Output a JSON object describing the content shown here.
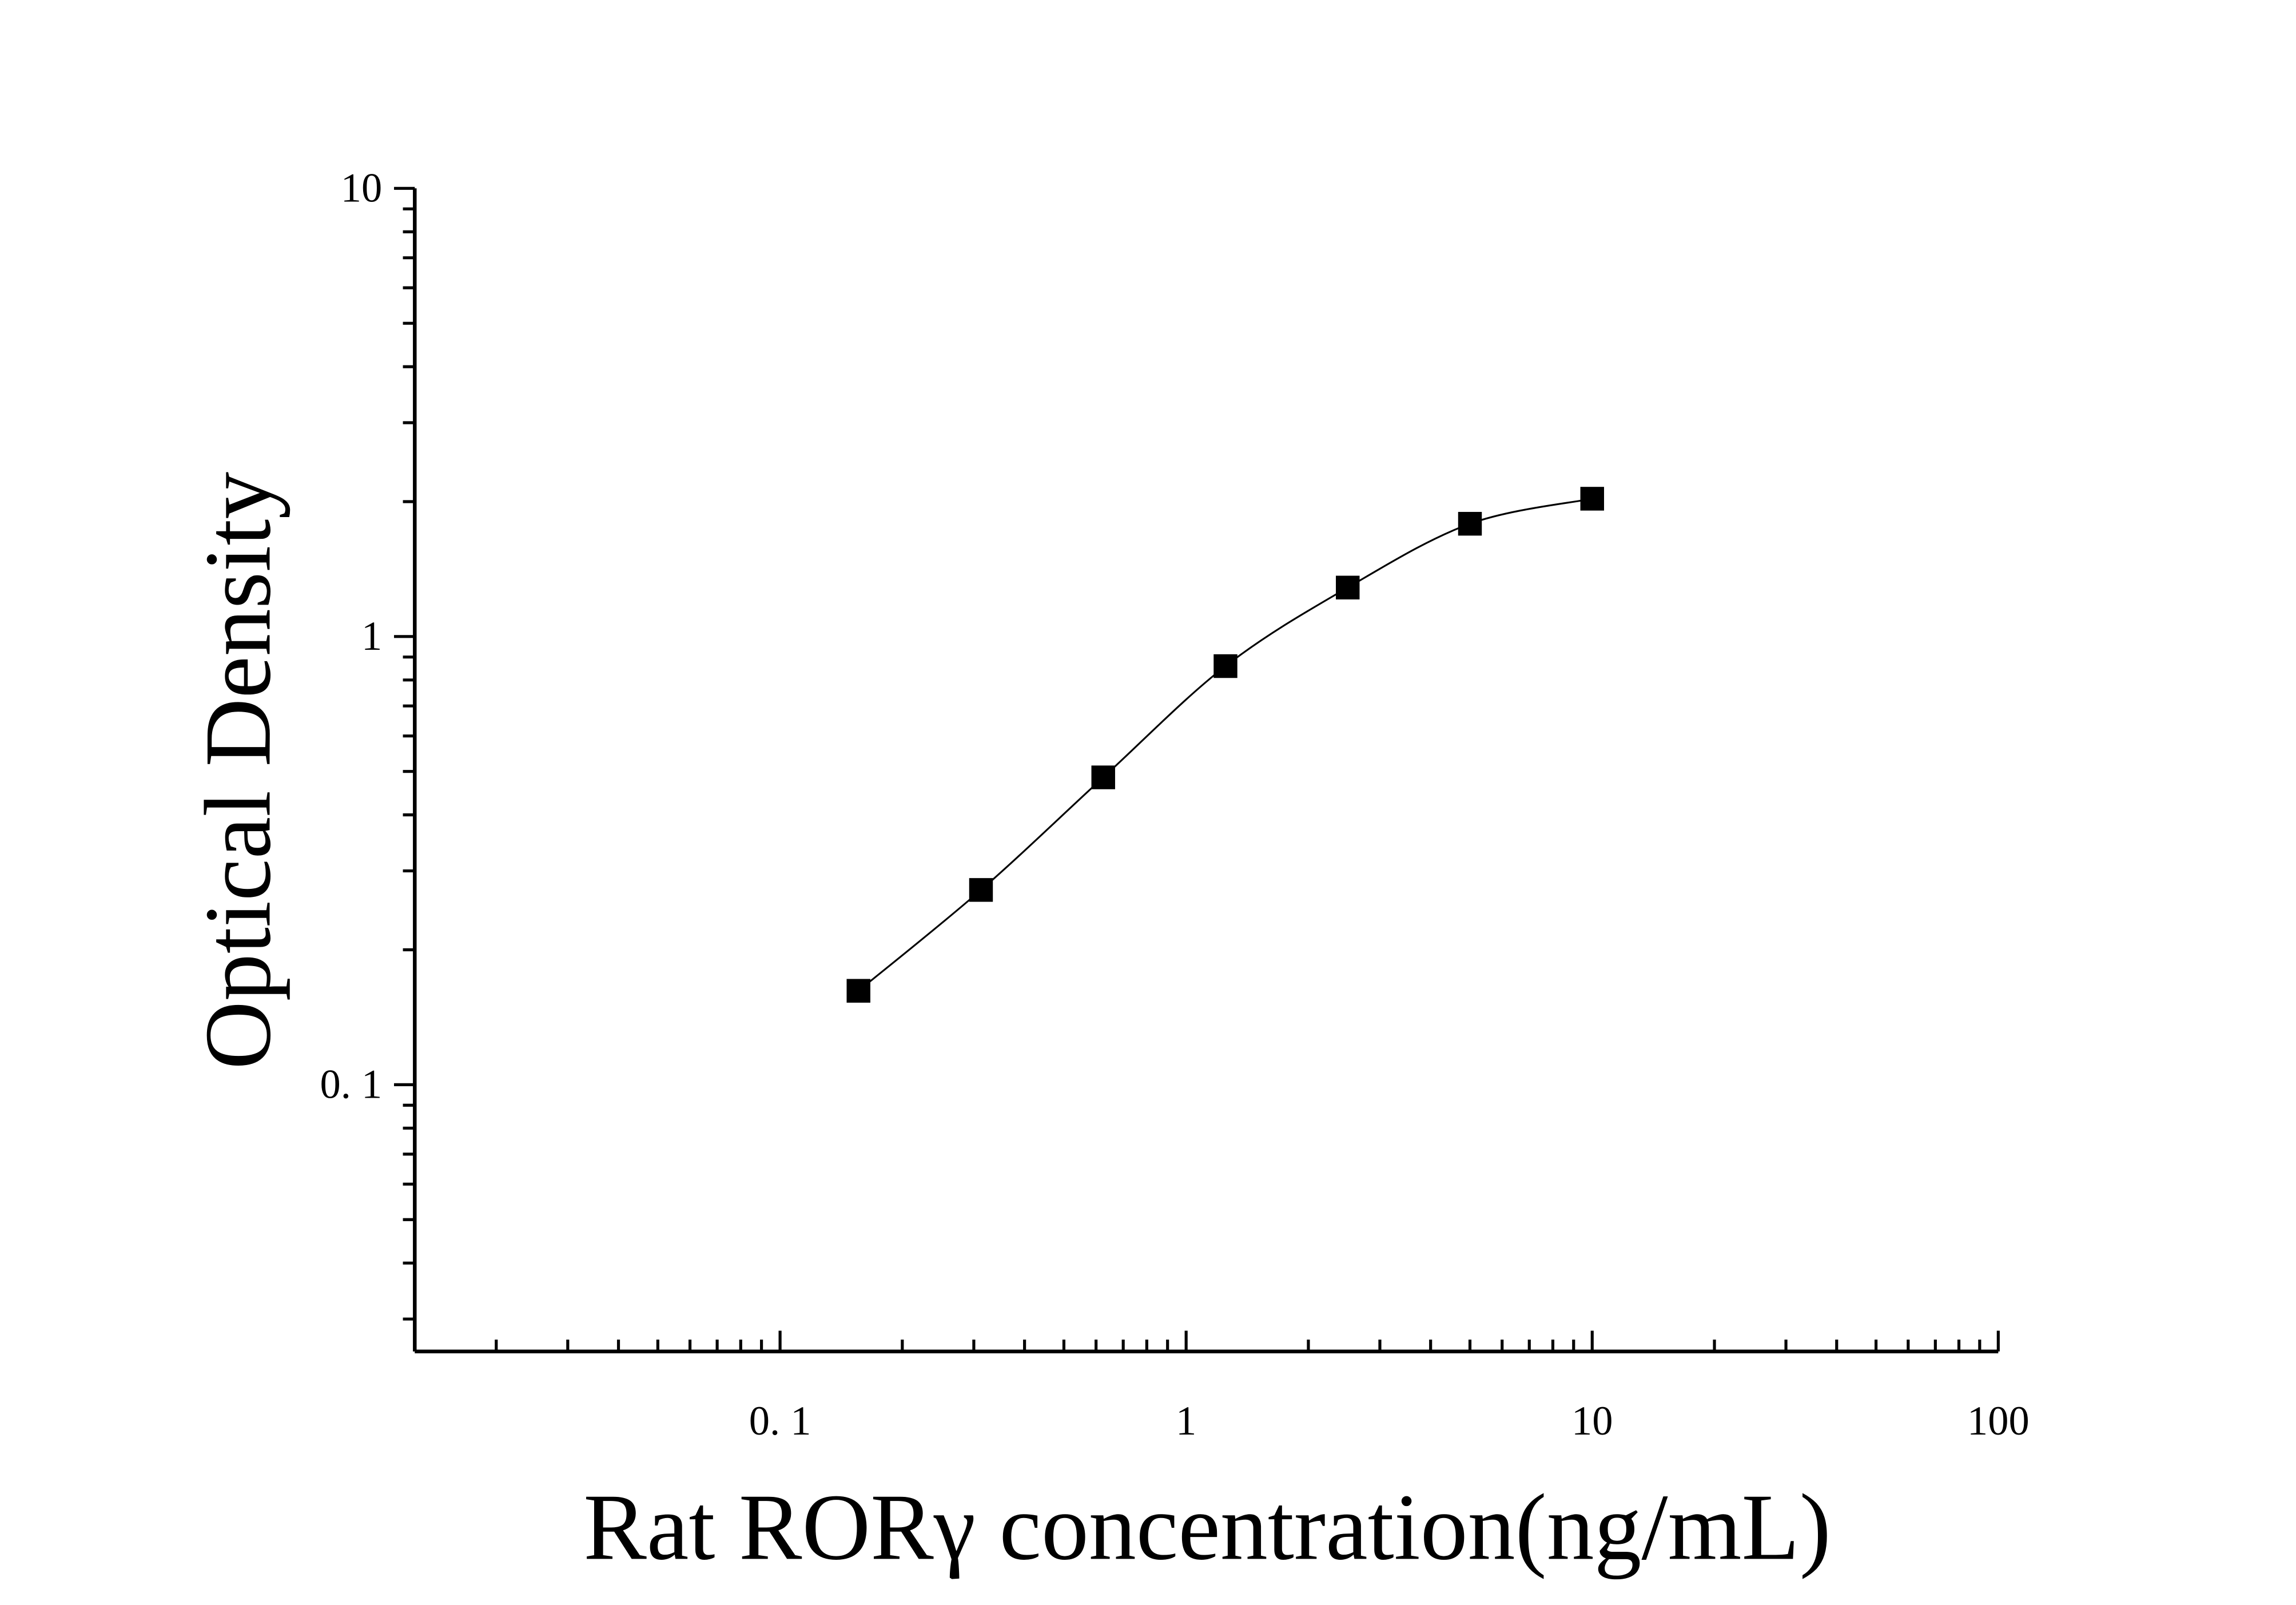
{
  "chart_data": {
    "type": "scatter",
    "title": "",
    "xlabel": "Rat RORγ concentration(ng/mL)",
    "ylabel": "Optical Density",
    "x_scale": "log",
    "y_scale": "log",
    "xlim": [
      0.0126,
      100
    ],
    "ylim": [
      0.0254,
      10
    ],
    "x_ticks": [
      {
        "value": 0.1,
        "label": "0. 1"
      },
      {
        "value": 1,
        "label": "1"
      },
      {
        "value": 10,
        "label": "10"
      },
      {
        "value": 100,
        "label": "100"
      }
    ],
    "y_ticks": [
      {
        "value": 0.1,
        "label": "0. 1"
      },
      {
        "value": 1,
        "label": "1"
      },
      {
        "value": 10,
        "label": "10"
      }
    ],
    "grid": false,
    "marker": "square",
    "fit_line": "smooth curve",
    "color": "#000000",
    "points": [
      {
        "x": 0.156,
        "y": 0.162
      },
      {
        "x": 0.3125,
        "y": 0.272
      },
      {
        "x": 0.625,
        "y": 0.485
      },
      {
        "x": 1.25,
        "y": 0.859
      },
      {
        "x": 2.5,
        "y": 1.286
      },
      {
        "x": 5,
        "y": 1.785
      },
      {
        "x": 10,
        "y": 2.03
      }
    ]
  }
}
